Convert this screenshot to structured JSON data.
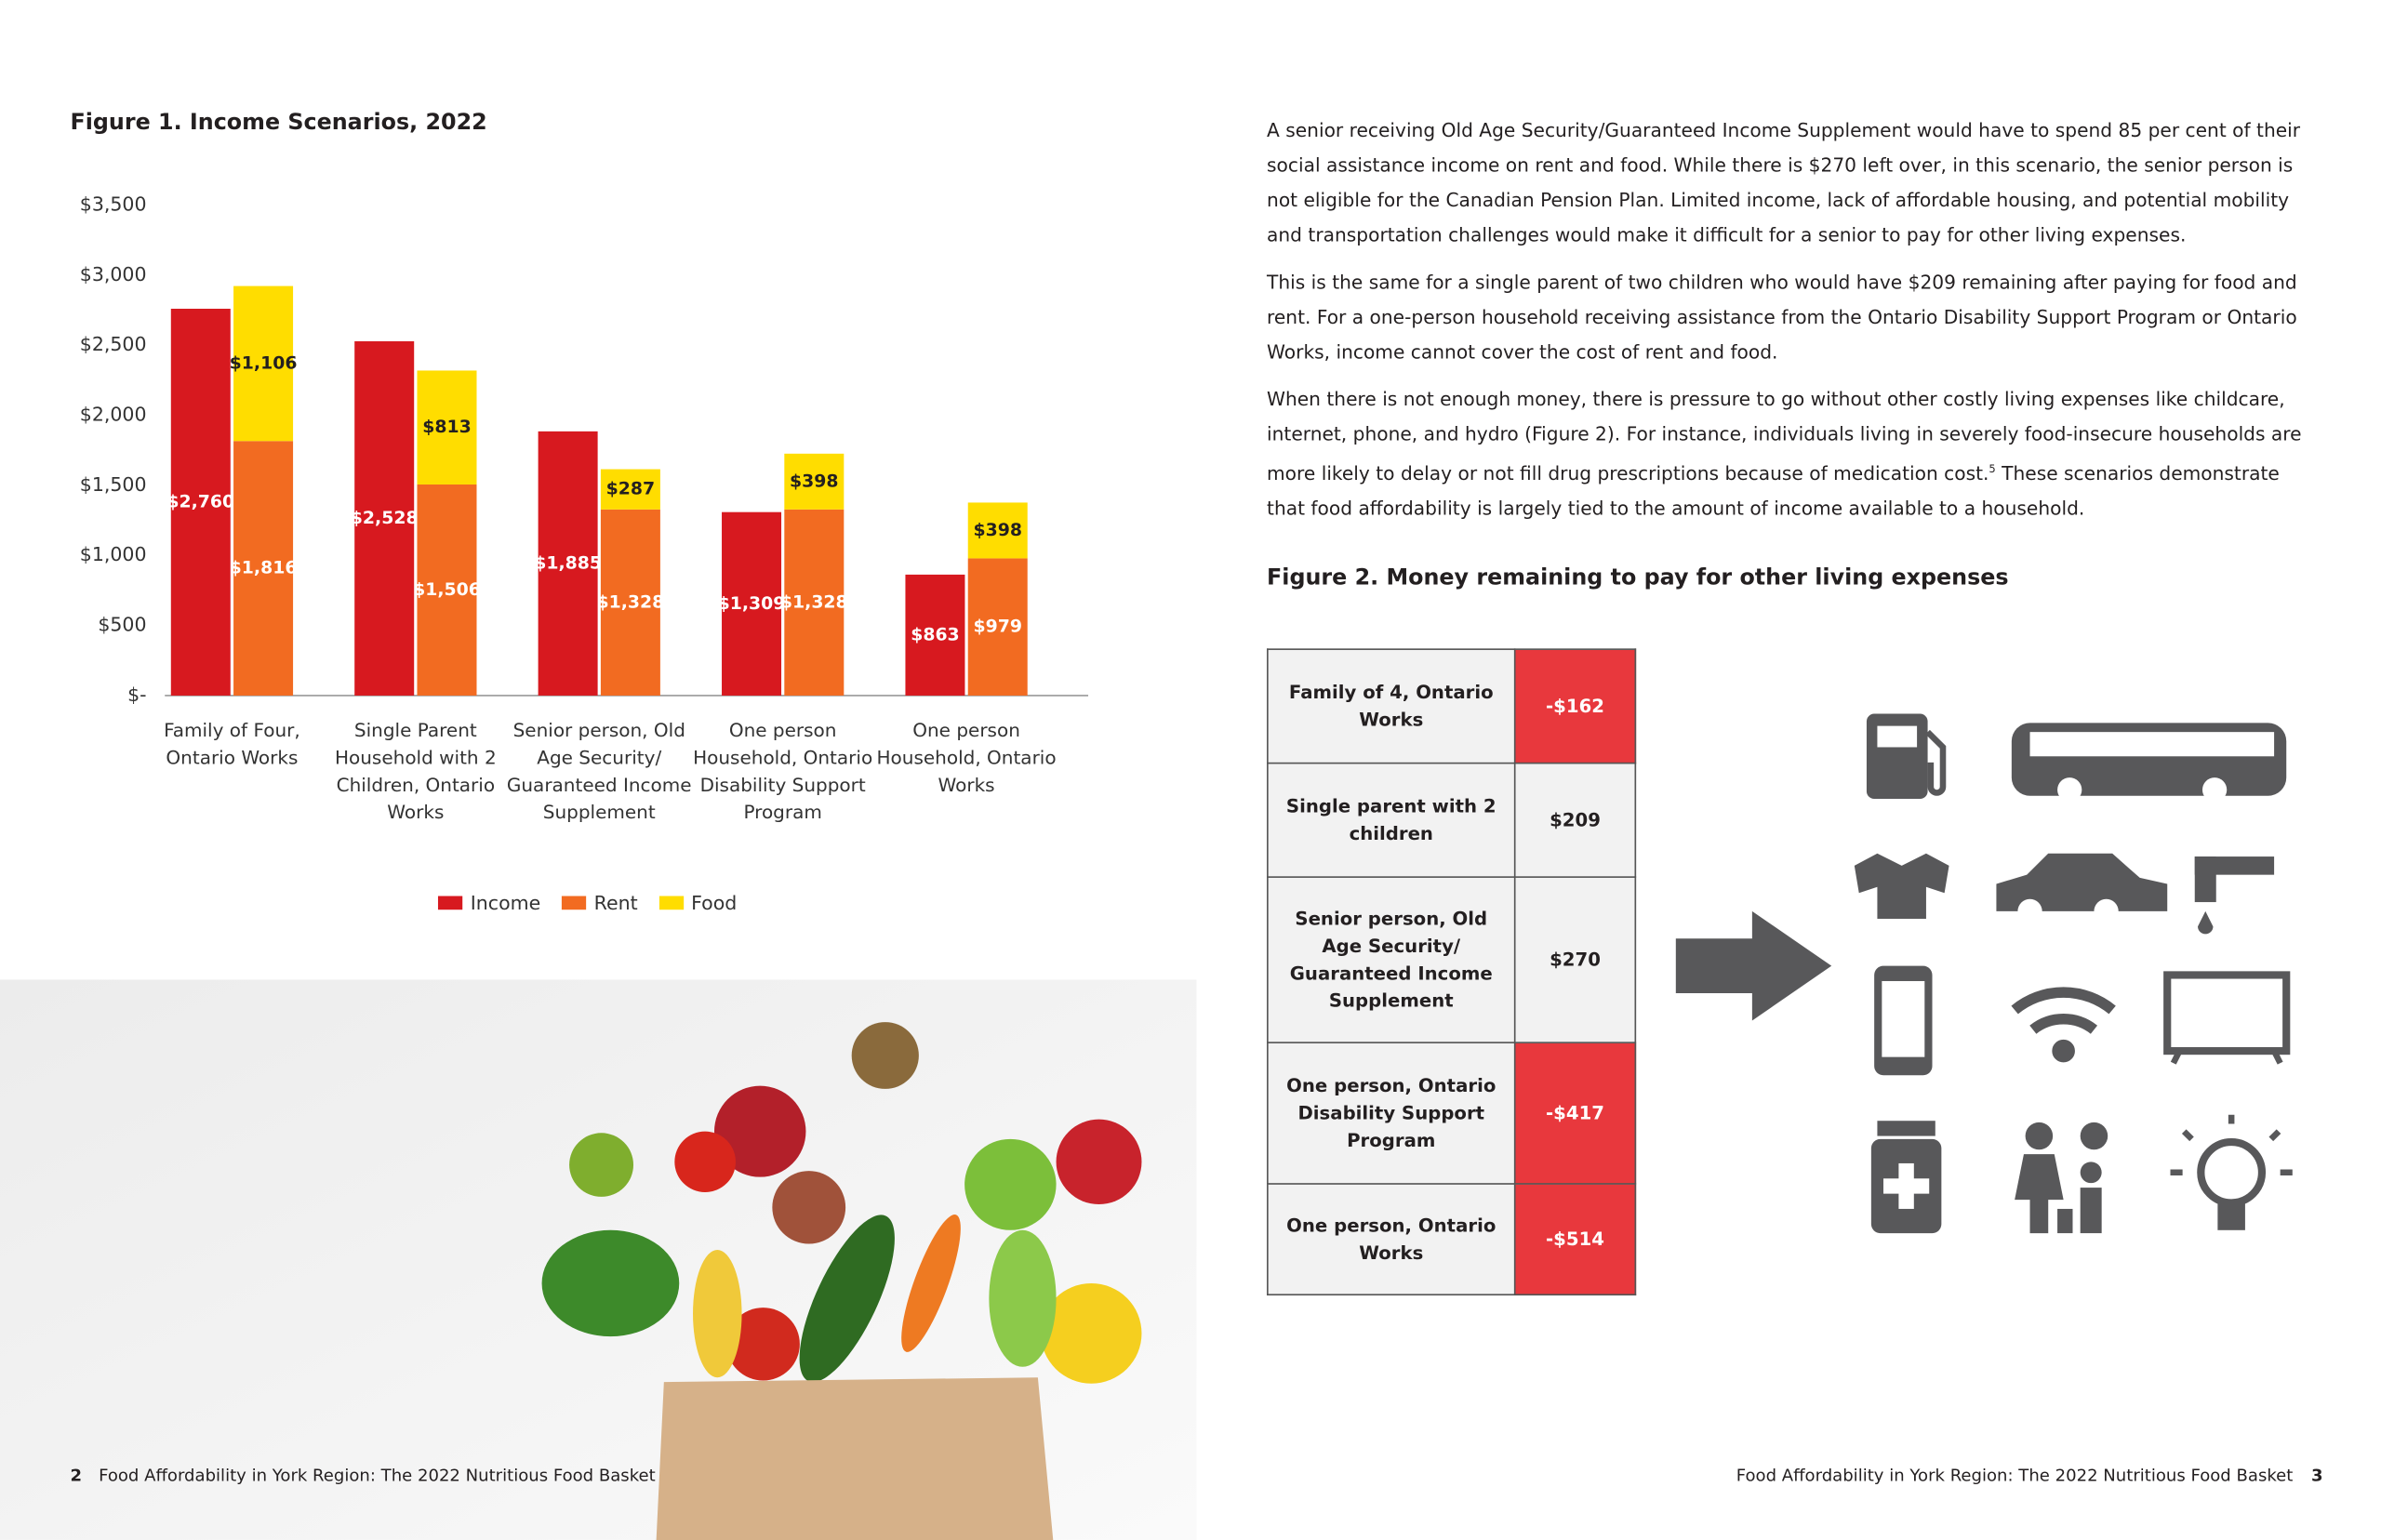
{
  "chart_data": {
    "type": "bar",
    "title": "Figure 1. Income Scenarios, 2022",
    "categories": [
      "Family of Four, Ontario Works",
      "Single Parent Household with 2 Children, Ontario Works",
      "Senior person, Old Age Security/ Guaranteed Income Supplement",
      "One person Household, Ontario Disability Support Program",
      "One person Household, Ontario Works"
    ],
    "series": [
      {
        "name": "Income",
        "color": "#d7191f",
        "stack": 0,
        "values": [
          2760,
          2528,
          1885,
          1309,
          863
        ],
        "value_labels": [
          "$2,760",
          "$2,528",
          "$1,885",
          "$1,309",
          "$863"
        ]
      },
      {
        "name": "Rent",
        "color": "#f26b21",
        "stack": 1,
        "values": [
          1816,
          1506,
          1328,
          1328,
          979
        ],
        "value_labels": [
          "$1,816",
          "$1,506",
          "$1,328",
          "$1,328",
          "$979"
        ]
      },
      {
        "name": "Food",
        "color": "#ffdd00",
        "stack": 1,
        "values": [
          1106,
          813,
          287,
          398,
          398
        ],
        "value_labels": [
          "$1,106",
          "$813",
          "$287",
          "$398",
          "$398"
        ]
      }
    ],
    "ylim": [
      0,
      3500
    ],
    "yticks": [
      {
        "value": 0,
        "label": "$-"
      },
      {
        "value": 500,
        "label": "$500"
      },
      {
        "value": 1000,
        "label": "$1,000"
      },
      {
        "value": 1500,
        "label": "$1,500"
      },
      {
        "value": 2000,
        "label": "$2,000"
      },
      {
        "value": 2500,
        "label": "$2,500"
      },
      {
        "value": 3000,
        "label": "$3,000"
      },
      {
        "value": 3500,
        "label": "$3,500"
      }
    ],
    "grid": false,
    "legend": "bottom"
  },
  "paragraphs": [
    "A senior receiving Old Age Security/Guaranteed Income Supplement would have to spend 85 per cent of their social assistance income on rent and food. While there is $270 left over, in this scenario, the senior person is not eligible for the Canadian Pension Plan. Limited income, lack of affordable housing, and potential mobility and transportation challenges would make it difficult for a senior to pay for other living expenses.",
    "This is the same for a single parent of two children who would have $209 remaining after paying for food and rent. For a one-person household receiving assistance from the Ontario Disability Support Program or Ontario Works, income cannot cover the cost of rent and food.",
    {
      "before": "When there is not enough money, there is pressure to go without other costly living expenses like childcare, internet, phone, and hydro (Figure 2). For instance, individuals living in severely food-insecure households are more likely to delay or not fill drug prescriptions because of medication cost.",
      "footnote": "5",
      "after": " These scenarios demonstrate that food affordability is largely tied to the amount of income available to a household."
    }
  ],
  "figure2": {
    "title": "Figure 2. Money remaining to pay for other living expenses",
    "rows": [
      {
        "label": "Family of 4, Ontario Works",
        "value": "-$162",
        "color": "#e8383d"
      },
      {
        "label": "Single parent with 2 children",
        "value": "$209",
        "color": "#f2f2f2"
      },
      {
        "label": "Senior person, Old Age Security/ Guaranteed Income Supplement",
        "value": "$270",
        "color": "#f2f2f2"
      },
      {
        "label": "One person, Ontario Disability Support Program",
        "value": "-$417",
        "color": "#e8383d"
      },
      {
        "label": "One person, Ontario Works",
        "value": "-$514",
        "color": "#e8383d"
      }
    ]
  },
  "footer": {
    "left_page": "2",
    "left_text": "Food Affordability in York Region: The 2022 Nutritious Food Basket",
    "right_text": "Food Affordability in York Region: The 2022 Nutritious Food Basket",
    "right_page": "3"
  }
}
